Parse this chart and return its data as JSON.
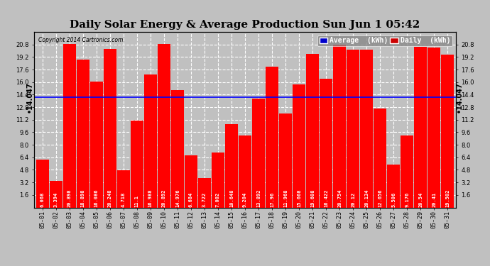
{
  "title": "Daily Solar Energy & Average Production Sun Jun 1 05:42",
  "copyright": "Copyright 2014 Cartronics.com",
  "categories": [
    "05-01",
    "05-02",
    "05-03",
    "05-04",
    "05-05",
    "05-06",
    "05-07",
    "05-08",
    "05-09",
    "05-10",
    "05-11",
    "05-12",
    "05-13",
    "05-14",
    "05-15",
    "05-16",
    "05-17",
    "05-18",
    "05-19",
    "05-20",
    "05-21",
    "05-22",
    "05-23",
    "05-24",
    "05-25",
    "05-26",
    "05-27",
    "05-28",
    "05-29",
    "05-30",
    "05-31"
  ],
  "values": [
    6.068,
    3.394,
    20.898,
    18.898,
    16.086,
    20.248,
    4.718,
    11.1,
    16.988,
    20.892,
    14.976,
    6.684,
    3.722,
    7.002,
    10.648,
    9.204,
    13.892,
    17.96,
    11.968,
    15.668,
    19.608,
    16.422,
    20.754,
    20.12,
    20.134,
    12.656,
    5.506,
    9.176,
    20.54,
    20.41,
    19.502
  ],
  "average": 14.047,
  "bar_color": "#ff0000",
  "average_line_color": "#0000ff",
  "background_color": "#c0c0c0",
  "plot_bg_color": "#c0c0c0",
  "grid_color": "#ffffff",
  "ylim": [
    0,
    22.4
  ],
  "yticks": [
    1.6,
    3.2,
    4.8,
    6.4,
    8.0,
    9.6,
    11.2,
    12.8,
    14.4,
    16.0,
    17.6,
    19.2,
    20.8
  ],
  "legend_avg_label": "Average  (kWh)",
  "legend_daily_label": "Daily  (kWh)",
  "legend_avg_bg": "#0000cc",
  "legend_daily_bg": "#cc0000",
  "title_fontsize": 11,
  "tick_fontsize": 6,
  "bar_label_fontsize": 5,
  "avg_label_fontsize": 7,
  "legend_fontsize": 7
}
